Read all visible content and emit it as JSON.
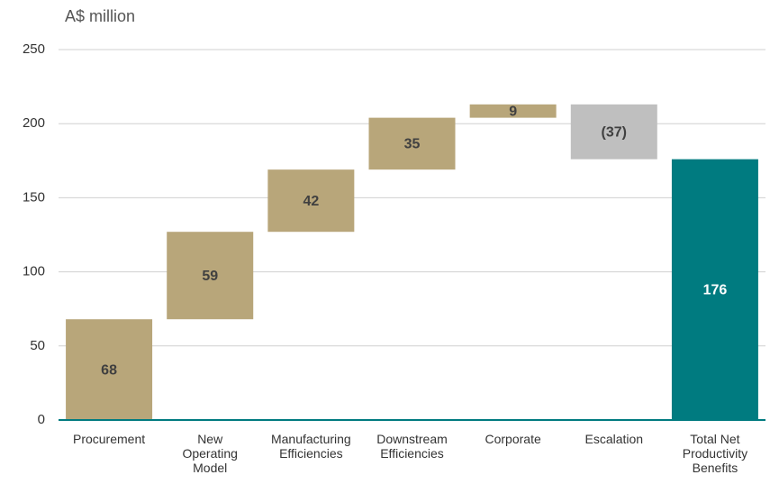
{
  "chart_data": {
    "type": "waterfall",
    "y_label": "A$ million",
    "categories": [
      "Procurement",
      "New Operating Model",
      "Manufacturing Efficiencies",
      "Downstream Efficiencies",
      "Corporate",
      "Escalation",
      "Total Net Productivity Benefits"
    ],
    "values": [
      68,
      59,
      42,
      35,
      9,
      -37,
      176
    ],
    "value_labels": [
      "68",
      "59",
      "42",
      "35",
      "9",
      "(37)",
      "176"
    ],
    "is_total": [
      false,
      false,
      false,
      false,
      false,
      false,
      true
    ],
    "increase_color": "#b8a67a",
    "decrease_color": "#bfbfbf",
    "total_color": "#007b80",
    "ylim": [
      0,
      250
    ],
    "yticks": [
      0,
      50,
      100,
      150,
      200,
      250
    ],
    "grid": true
  }
}
